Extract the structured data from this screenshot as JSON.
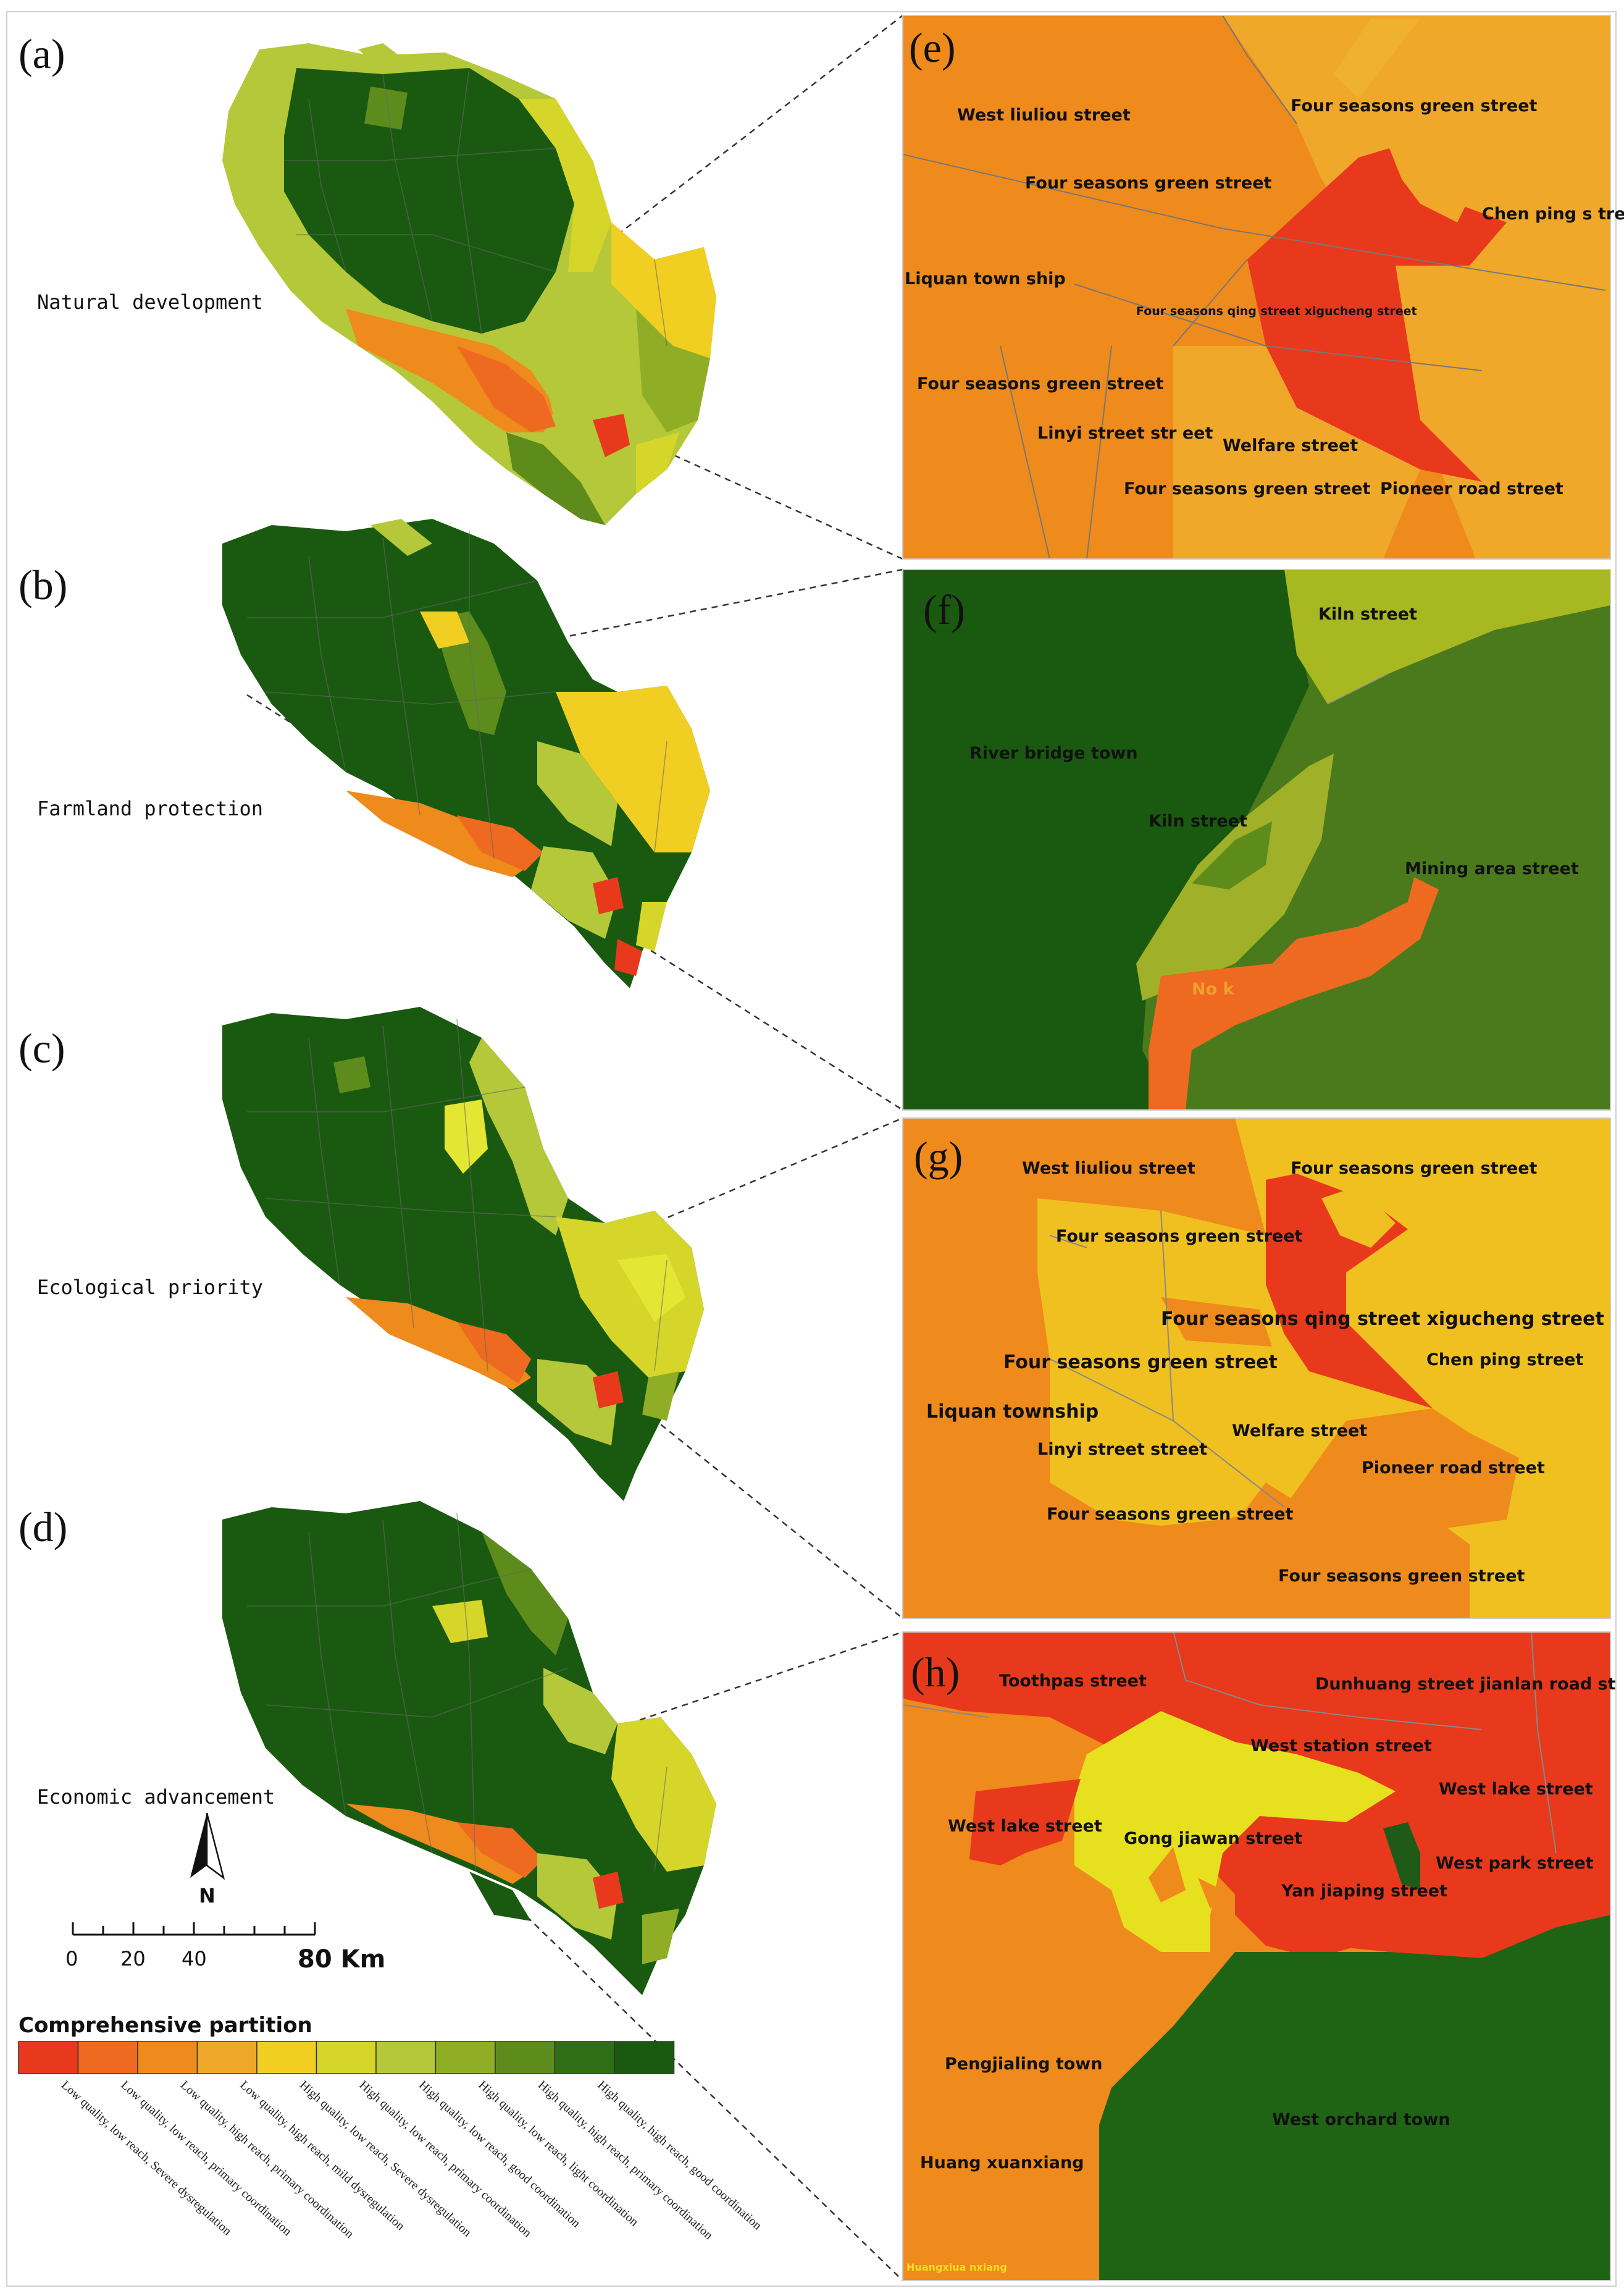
{
  "colors": {
    "c1": "#e8391c",
    "c2": "#ee6a20",
    "c3": "#ef8a1c",
    "c4": "#f0a82a",
    "c5": "#f0cf22",
    "c6": "#d6d62a",
    "c7": "#b4c83a",
    "c8": "#8fae26",
    "c9": "#5d8c1c",
    "c10": "#2e6e14",
    "c11": "#1a5a10",
    "boundary": "#555555"
  },
  "panels": {
    "a": {
      "label": "(a)",
      "scenario": "Natural development"
    },
    "b": {
      "label": "(b)",
      "scenario": "Farmland protection"
    },
    "c": {
      "label": "(c)",
      "scenario": "Ecological priority"
    },
    "d": {
      "label": "(d)",
      "scenario": "Economic advancement"
    }
  },
  "insets": {
    "e": {
      "label": "(e)",
      "streets": [
        "West liuliou street",
        "Four seasons green street",
        "Four seasons green street",
        "Chen ping s treet",
        "Liquan town ship",
        "Four seasons qing street xigucheng street",
        "Four seasons green street",
        "Linyi street str eet",
        "Welfare street",
        "Four seasons green street",
        "Pioneer road street"
      ]
    },
    "f": {
      "label": "(f)",
      "streets": [
        "Kiln street",
        "River bridge town",
        "Kiln street",
        "Mining area street",
        "No k"
      ]
    },
    "g": {
      "label": "(g)",
      "streets": [
        "West liuliou street",
        "Four seasons green street",
        "Four seasons green street",
        "Four seasons qing street xigucheng street",
        "Four seasons green street",
        "Chen ping street",
        "Liquan township",
        "Welfare street",
        "Linyi street street",
        "Pioneer road street",
        "Four seasons green street",
        "Four seasons green street"
      ]
    },
    "h": {
      "label": "(h)",
      "streets": [
        "Toothpas street",
        "Dunhuang street jianlan road st",
        "West station street",
        "West lake street",
        "West lake street",
        "Gong jiawan street",
        "West park street",
        "Yan jiaping street",
        "Pengjialing town",
        "West orchard town",
        "Huang xuanxiang",
        "Huangxiua nxiang"
      ]
    }
  },
  "north_arrow": {
    "label": "N"
  },
  "scale_bar": {
    "ticks": [
      "0",
      "20",
      "40"
    ],
    "end_label": "80 Km"
  },
  "legend": {
    "title": "Comprehensive partition",
    "items": [
      "Low quality, low reach, Severe dysregulation",
      "Low quality, low reach, primary coordination",
      "Low quality, high reach, primary coordination",
      "Low quality, high reach, mild dysregulation",
      "High quality, low reach, Severe dysregulation",
      "High quality, low reach, primary coordination",
      "High quality, low reach, good coordination",
      "High quality, low reach, light coordination",
      "High quality, high reach, primary coordination",
      "High quality, high reach, good coordination"
    ]
  }
}
